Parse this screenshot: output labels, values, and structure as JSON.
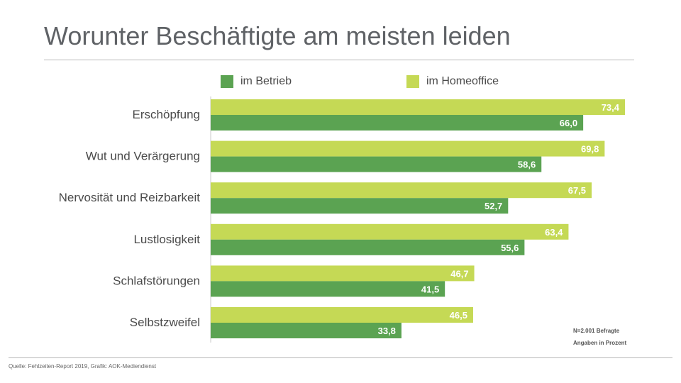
{
  "title": "Worunter Beschäftigte am meisten leiden",
  "legend": [
    {
      "label": "im Betrieb",
      "color": "#5ba352"
    },
    {
      "label": "im Homeoffice",
      "color": "#c5d955"
    }
  ],
  "note": {
    "line1": "N=2.001 Befragte",
    "line2": "Angaben in Prozent"
  },
  "source": "Quelle: Fehlzeiten-Report 2019, Grafik: AOK-Mediendienst",
  "chart_data": {
    "type": "bar",
    "orientation": "horizontal",
    "title": "Worunter Beschäftigte am meisten leiden",
    "categories": [
      "Erschöpfung",
      "Wut und Verärgerung",
      "Nervosität und Reizbarkeit",
      "Lustlosigkeit",
      "Schlafstörungen",
      "Selbstzweifel"
    ],
    "series": [
      {
        "name": "im Homeoffice",
        "color": "#c5d955",
        "values": [
          73.4,
          69.8,
          67.5,
          63.4,
          46.7,
          46.5
        ],
        "labels": [
          "73,4",
          "69,8",
          "67,5",
          "63,4",
          "46,7",
          "46,5"
        ]
      },
      {
        "name": "im Betrieb",
        "color": "#5ba352",
        "values": [
          66.0,
          58.6,
          52.7,
          55.6,
          41.5,
          33.8
        ],
        "labels": [
          "66,0",
          "58,6",
          "52,7",
          "55,6",
          "41,5",
          "33,8"
        ]
      }
    ],
    "xlim": [
      0,
      73.4
    ],
    "grid": false,
    "legend_position": "top"
  }
}
